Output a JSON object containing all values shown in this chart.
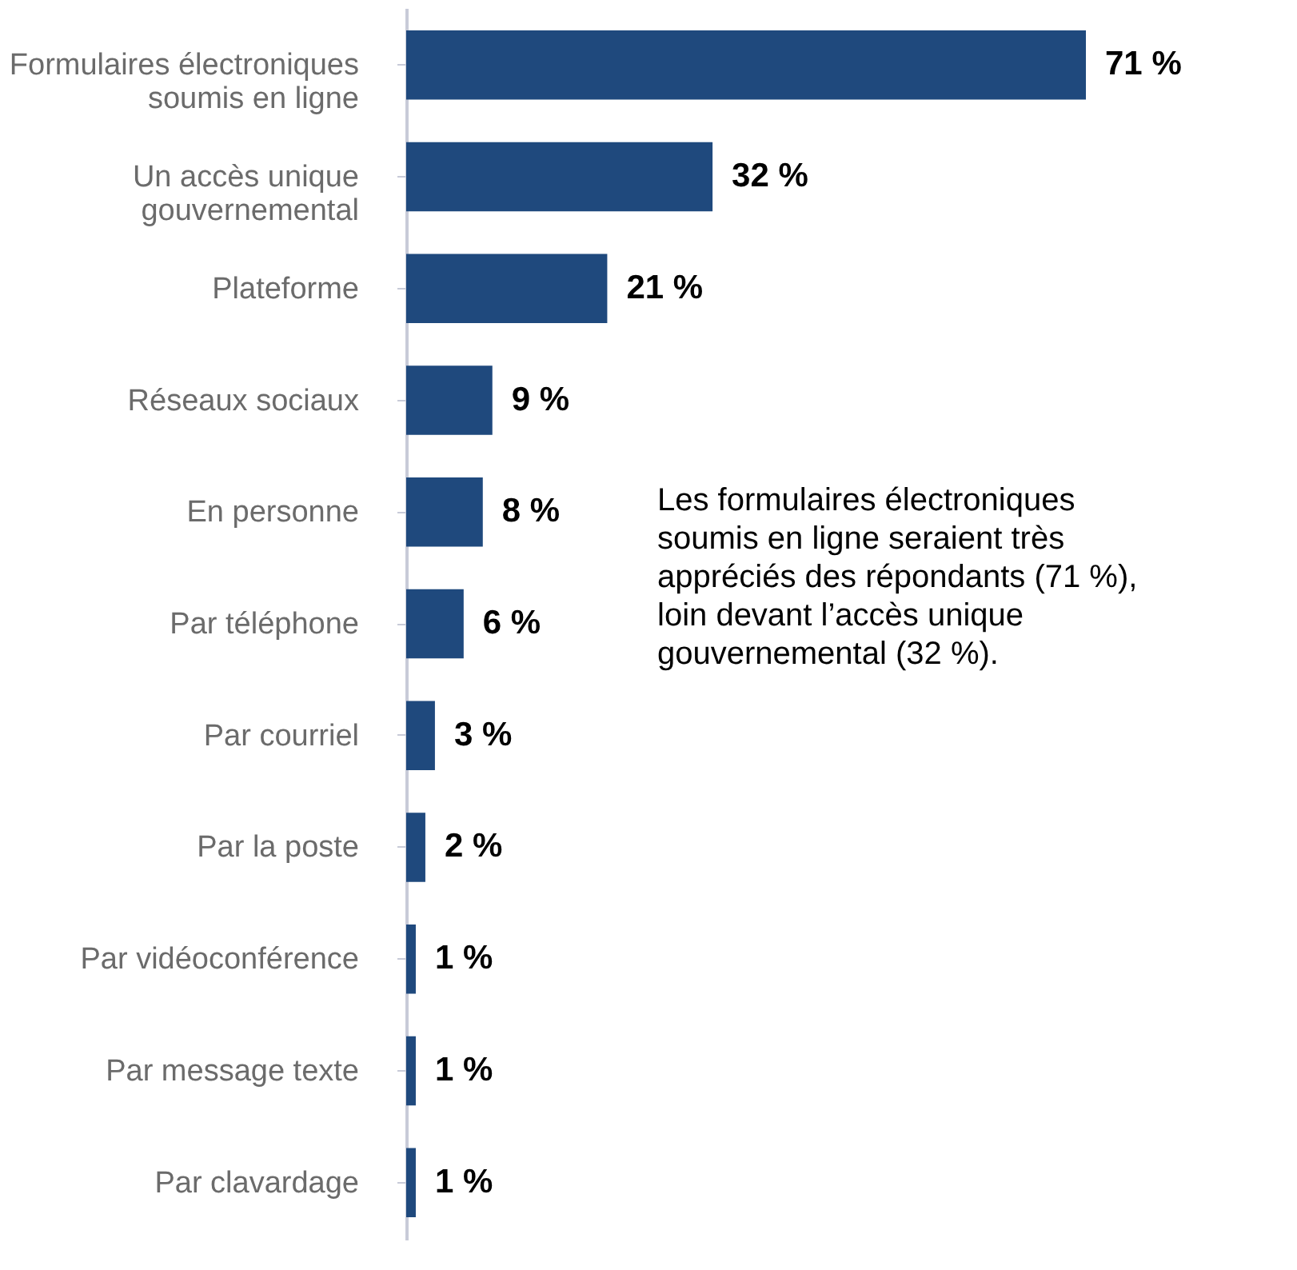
{
  "chart_data": {
    "type": "bar",
    "orientation": "horizontal",
    "color": "#1f497d",
    "categories": [
      "Formulaires électroniques soumis en ligne",
      "Un accès unique gouvernemental",
      "Plateforme",
      "Réseaux sociaux",
      "En personne",
      "Par téléphone",
      "Par courriel",
      "Par la poste",
      "Par vidéoconférence",
      "Par message texte",
      "Par clavardage"
    ],
    "values": [
      71,
      32,
      21,
      9,
      8,
      6,
      3,
      2,
      1,
      1,
      1
    ],
    "value_labels": [
      "71 %",
      "32 %",
      "21 %",
      "9 %",
      "8 %",
      "6 %",
      "3 %",
      "2 %",
      "1 %",
      "1 %",
      "1 %"
    ],
    "annotations": [
      "Les formulaires électroniques soumis en ligne seraient très appréciés des répondants (71 %), loin devant l’accès unique gouvernemental (32 %)."
    ],
    "grid": false
  }
}
